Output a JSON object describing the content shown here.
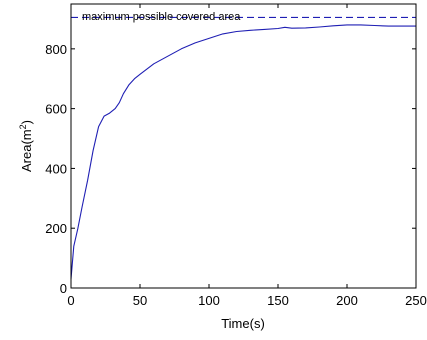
{
  "chart_data": {
    "type": "line",
    "xlabel": "Time(s)",
    "ylabel_base": "Area(m",
    "ylabel_sup": "2",
    "ylabel_tail": ")",
    "xlim": [
      0,
      250
    ],
    "ylim": [
      0,
      950
    ],
    "x_ticks": [
      0,
      50,
      100,
      150,
      200,
      250
    ],
    "x_tick_labels": [
      "0",
      "50",
      "100",
      "150",
      "200",
      "250"
    ],
    "y_ticks": [
      0,
      200,
      400,
      600,
      800
    ],
    "y_tick_labels": [
      "0",
      "200",
      "400",
      "600",
      "800"
    ],
    "grid": false,
    "series": [
      {
        "style": "solid",
        "color": "#1f1fb4",
        "x": [
          0,
          2,
          5,
          8,
          12,
          16,
          20,
          24,
          28,
          32,
          35,
          38,
          42,
          46,
          50,
          60,
          70,
          80,
          90,
          100,
          110,
          120,
          130,
          140,
          150,
          155,
          160,
          170,
          180,
          190,
          200,
          210,
          220,
          230,
          240,
          250
        ],
        "y": [
          30,
          140,
          200,
          270,
          360,
          460,
          540,
          575,
          585,
          600,
          620,
          650,
          680,
          700,
          715,
          750,
          775,
          800,
          820,
          835,
          850,
          858,
          862,
          865,
          868,
          872,
          869,
          870,
          873,
          877,
          880,
          880,
          878,
          876,
          876,
          876
        ]
      }
    ],
    "reference_line": {
      "style": "dashed",
      "color": "#1f1fb4",
      "y": 905,
      "label": "maximum possible covered area"
    }
  }
}
